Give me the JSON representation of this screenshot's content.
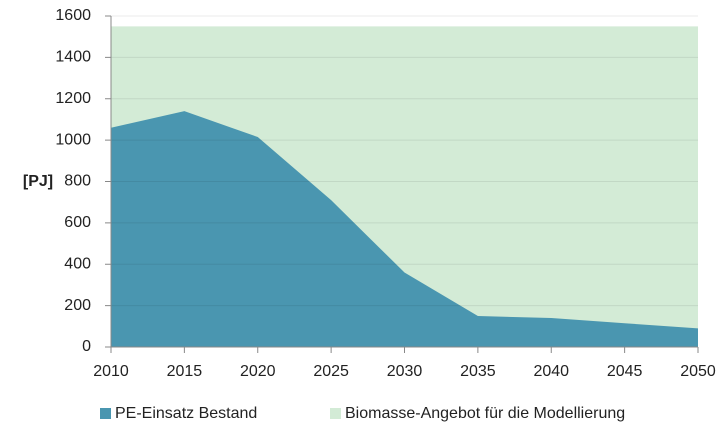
{
  "chart_data": {
    "type": "area",
    "y_label": "[PJ]",
    "x": [
      2010,
      2015,
      2020,
      2025,
      2030,
      2035,
      2040,
      2045,
      2050
    ],
    "series": [
      {
        "name": "PE-Einsatz Bestand",
        "color": "#4a96b0",
        "values": [
          1060,
          1140,
          1015,
          710,
          360,
          150,
          140,
          115,
          90
        ]
      },
      {
        "name": "Biomasse-Angebot für die Modellierung",
        "color": "#d3ebd6",
        "values": [
          1550,
          1550,
          1550,
          1550,
          1550,
          1550,
          1550,
          1550,
          1550
        ]
      }
    ],
    "xlim": [
      2010,
      2050
    ],
    "xticks": [
      2010,
      2015,
      2020,
      2025,
      2030,
      2035,
      2040,
      2045,
      2050
    ],
    "ylim": [
      0,
      1600
    ],
    "yticks": [
      0,
      200,
      400,
      600,
      800,
      1000,
      1200,
      1400,
      1600
    ],
    "grid": true,
    "legend": "bottom"
  }
}
